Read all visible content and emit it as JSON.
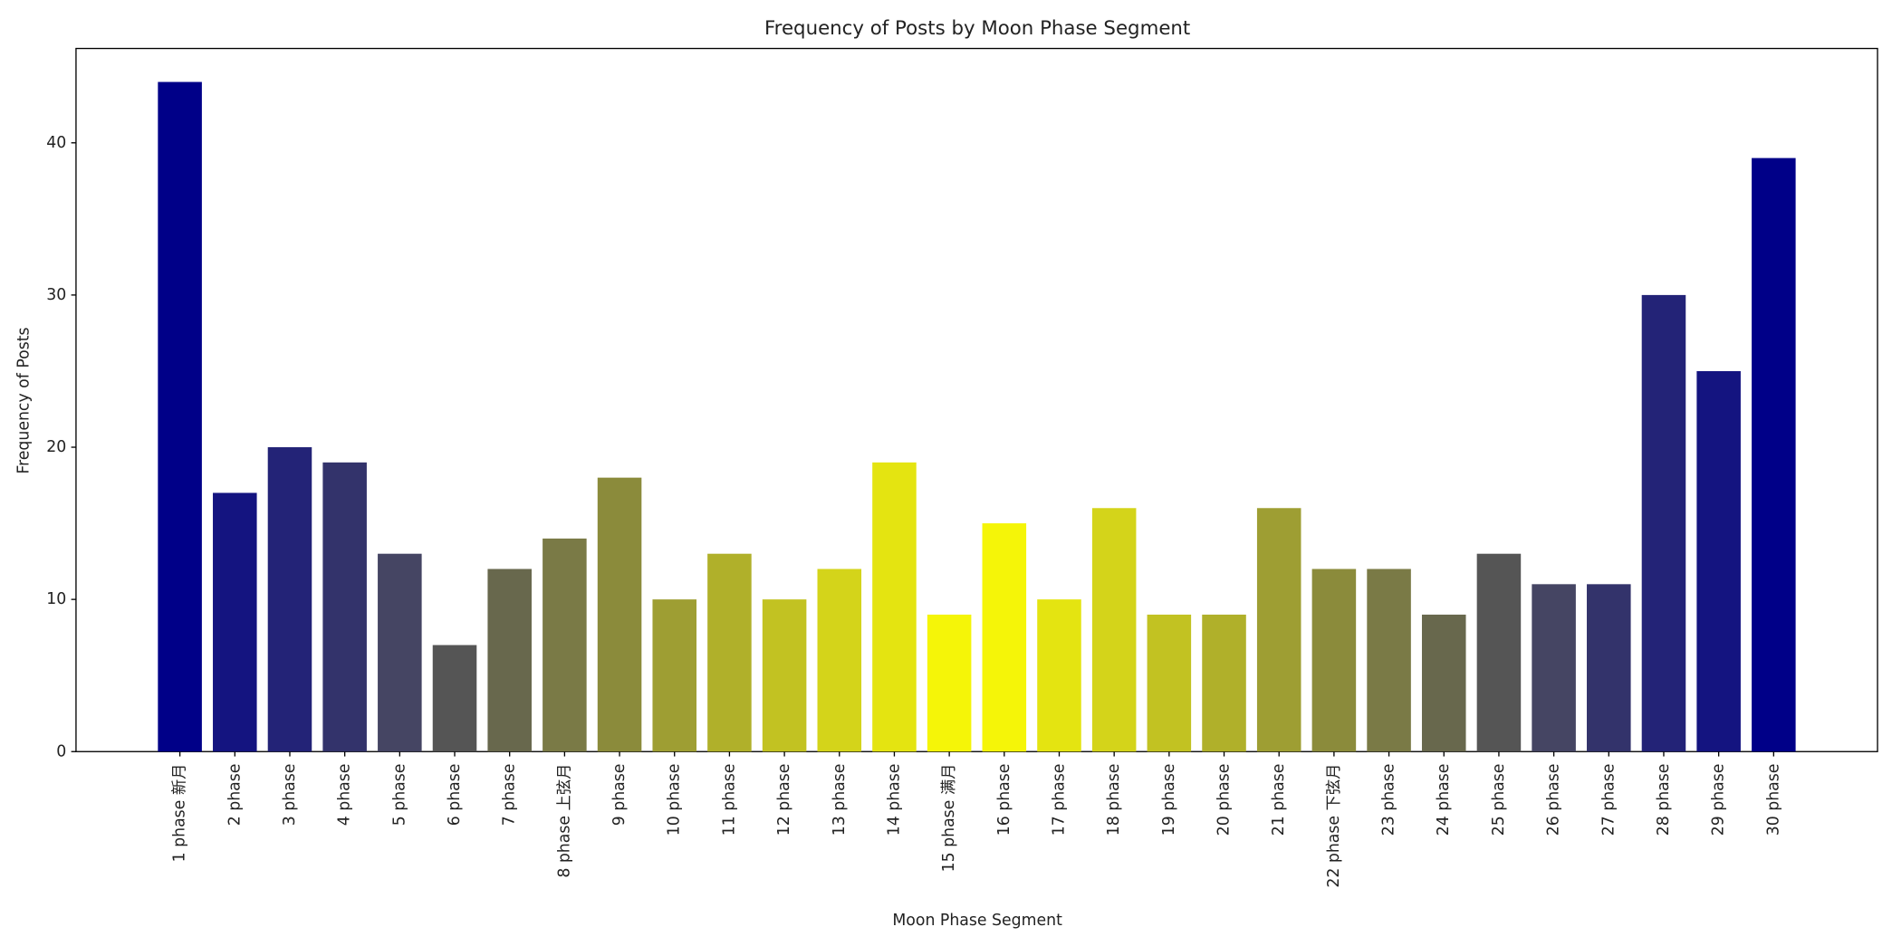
{
  "chart_data": {
    "type": "bar",
    "title": "Frequency of Posts by Moon Phase Segment",
    "x_label": "Moon Phase Segment",
    "y_label": "Frequency of Posts",
    "categories": [
      "1 phase 新月",
      "2 phase",
      "3 phase",
      "4 phase",
      "5 phase",
      "6 phase",
      "7 phase",
      "8 phase 上弦月",
      "9 phase",
      "10 phase",
      "11 phase",
      "12 phase",
      "13 phase",
      "14 phase",
      "15 phase 满月",
      "16 phase",
      "17 phase",
      "18 phase",
      "19 phase",
      "20 phase",
      "21 phase",
      "22 phase 下弦月",
      "23 phase",
      "24 phase",
      "25 phase",
      "26 phase",
      "27 phase",
      "28 phase",
      "29 phase",
      "30 phase"
    ],
    "values": [
      44,
      17,
      20,
      19,
      13,
      7,
      12,
      14,
      18,
      10,
      13,
      10,
      12,
      19,
      9,
      15,
      10,
      16,
      9,
      9,
      16,
      12,
      12,
      9,
      13,
      11,
      11,
      30,
      25,
      39
    ],
    "colors": [
      "#000088",
      "#141480",
      "#232377",
      "#33336b",
      "#454563",
      "#555555",
      "#68684d",
      "#7a7a46",
      "#8b8b3b",
      "#9e9e33",
      "#b0b02a",
      "#c2c222",
      "#d4d41a",
      "#e4e411",
      "#f5f508",
      "#f5f508",
      "#e4e411",
      "#d4d41a",
      "#c2c222",
      "#b0b02a",
      "#9e9e33",
      "#8b8b3b",
      "#7a7a46",
      "#68684d",
      "#555555",
      "#454563",
      "#33336b",
      "#232377",
      "#141480",
      "#000088"
    ],
    "ylim": [
      0,
      46.2
    ],
    "yticks": [
      0,
      10,
      20,
      30,
      40
    ],
    "grid": false
  }
}
